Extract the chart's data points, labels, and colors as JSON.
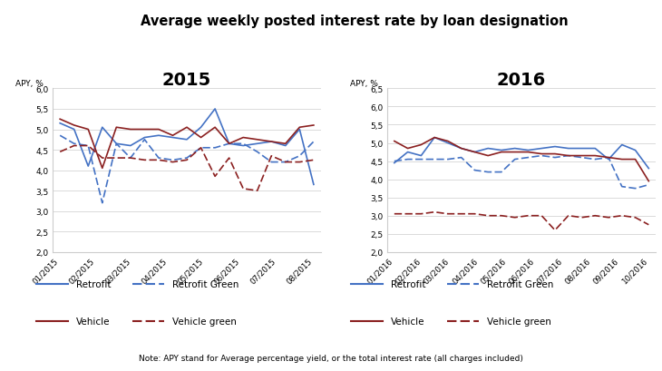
{
  "title": "Average weekly posted interest rate by loan designation",
  "note": "Note: APY stand for Average percentage yield, or the total interest rate (all charges included)",
  "ylabel": "APY, %",
  "year2015": {
    "title": "2015",
    "xticks": [
      "01/2015",
      "02/2015",
      "03/2015",
      "04/2015",
      "05/2015",
      "06/2015",
      "07/2015",
      "08/2015"
    ],
    "ylim": [
      2.0,
      6.0
    ],
    "yticks": [
      2.0,
      2.5,
      3.0,
      3.5,
      4.0,
      4.5,
      5.0,
      5.5,
      6.0
    ],
    "retrofit": [
      5.15,
      5.0,
      4.1,
      5.05,
      4.65,
      4.6,
      4.8,
      4.85,
      4.8,
      4.75,
      5.05,
      5.5,
      4.65,
      4.6,
      4.65,
      4.7,
      4.6,
      5.0,
      3.65
    ],
    "retrofit_green": [
      4.85,
      4.65,
      4.6,
      3.2,
      4.65,
      4.3,
      4.75,
      4.3,
      4.25,
      4.3,
      4.55,
      4.55,
      4.65,
      4.65,
      4.45,
      4.2,
      4.2,
      4.35,
      4.7
    ],
    "vehicle": [
      5.25,
      5.1,
      5.0,
      4.05,
      5.05,
      5.0,
      5.0,
      5.0,
      4.85,
      5.05,
      4.8,
      5.05,
      4.65,
      4.8,
      4.75,
      4.7,
      4.65,
      5.05,
      5.1
    ],
    "vehicle_green": [
      4.45,
      4.6,
      4.6,
      4.3,
      4.3,
      4.3,
      4.25,
      4.25,
      4.2,
      4.25,
      4.55,
      3.85,
      4.3,
      3.55,
      3.5,
      4.35,
      4.2,
      4.2,
      4.25
    ]
  },
  "year2016": {
    "title": "2016",
    "xticks": [
      "01/2016",
      "02/2016",
      "03/2016",
      "04/2016",
      "05/2016",
      "06/2016",
      "07/2016",
      "08/2016",
      "09/2016",
      "10/2016"
    ],
    "ylim": [
      2.0,
      6.5
    ],
    "yticks": [
      2.0,
      2.5,
      3.0,
      3.5,
      4.0,
      4.5,
      5.0,
      5.5,
      6.0,
      6.5
    ],
    "retrofit": [
      4.45,
      4.75,
      4.65,
      5.15,
      5.0,
      4.85,
      4.75,
      4.85,
      4.8,
      4.85,
      4.8,
      4.85,
      4.9,
      4.85,
      4.85,
      4.85,
      4.55,
      4.95,
      4.8,
      4.3
    ],
    "retrofit_green": [
      4.5,
      4.55,
      4.55,
      4.55,
      4.55,
      4.6,
      4.25,
      4.2,
      4.2,
      4.55,
      4.6,
      4.65,
      4.6,
      4.65,
      4.6,
      4.55,
      4.6,
      3.8,
      3.75,
      3.85
    ],
    "vehicle": [
      5.05,
      4.85,
      4.95,
      5.15,
      5.05,
      4.85,
      4.75,
      4.65,
      4.75,
      4.75,
      4.75,
      4.7,
      4.7,
      4.65,
      4.65,
      4.65,
      4.6,
      4.55,
      4.55,
      3.95
    ],
    "vehicle_green": [
      3.05,
      3.05,
      3.05,
      3.1,
      3.05,
      3.05,
      3.05,
      3.0,
      3.0,
      2.95,
      3.0,
      3.0,
      2.6,
      3.0,
      2.95,
      3.0,
      2.95,
      3.0,
      2.95,
      2.75
    ]
  },
  "color_blue": "#4472C4",
  "color_red": "#8B2020",
  "legend_retrofit": "Retrofit",
  "legend_retrofit_green": "Retrofit Green",
  "legend_vehicle": "Vehicle",
  "legend_vehicle_green": "Vehicle green"
}
